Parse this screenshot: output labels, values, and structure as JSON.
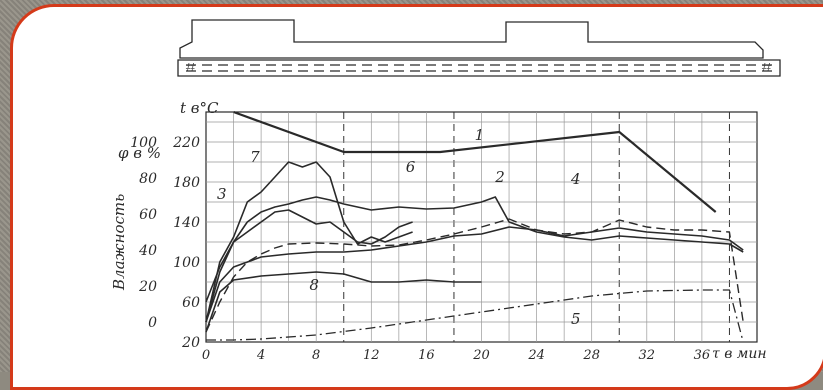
{
  "chart_data": {
    "type": "line",
    "title": "",
    "xlabel": "τ в мин",
    "ylabel_left_outer": "Влажность",
    "ylabel_phi": "φ в %",
    "ylabel_temp": "t в°C",
    "x_ticks": [
      "0",
      "4",
      "8",
      "12",
      "16",
      "20",
      "24",
      "28",
      "32",
      "36"
    ],
    "phi_ticks": [
      "0",
      "20",
      "40",
      "60",
      "80",
      "100"
    ],
    "temp_ticks": [
      "20",
      "60",
      "100",
      "140",
      "180",
      "220"
    ],
    "xlim": [
      0,
      40
    ],
    "tlim": [
      20,
      250
    ],
    "grid": true,
    "series": [
      {
        "name": "1",
        "style": "solid-bold",
        "x": [
          2,
          10,
          17,
          30,
          37
        ],
        "y": [
          250,
          210,
          210,
          230,
          150
        ]
      },
      {
        "name": "2",
        "style": "solid",
        "x": [
          0,
          1,
          2,
          3,
          4,
          5,
          6,
          7,
          8,
          9,
          10,
          12,
          14,
          16,
          18,
          20,
          21,
          22,
          24,
          26,
          28,
          30,
          32,
          34,
          36,
          38,
          39
        ],
        "y": [
          60,
          95,
          120,
          140,
          150,
          155,
          158,
          162,
          165,
          162,
          158,
          152,
          155,
          153,
          154,
          160,
          165,
          140,
          130,
          125,
          122,
          126,
          124,
          122,
          120,
          118,
          110
        ]
      },
      {
        "name": "3",
        "style": "dashed",
        "x": [
          0,
          1,
          2,
          3,
          4,
          5,
          6,
          8,
          10,
          12,
          14,
          16,
          18,
          20,
          22,
          24,
          26,
          28,
          30,
          32,
          34,
          36,
          38,
          39
        ],
        "y": [
          30,
          60,
          85,
          100,
          108,
          114,
          118,
          119,
          118,
          116,
          117,
          122,
          128,
          135,
          143,
          132,
          128,
          130,
          142,
          135,
          132,
          132,
          130,
          40
        ]
      },
      {
        "name": "4",
        "style": "solid",
        "x": [
          0,
          1,
          2,
          4,
          6,
          8,
          10,
          12,
          14,
          16,
          18,
          20,
          22,
          24,
          26,
          28,
          30,
          32,
          34,
          36,
          38,
          39
        ],
        "y": [
          40,
          80,
          95,
          105,
          108,
          110,
          110,
          112,
          116,
          120,
          126,
          128,
          135,
          132,
          126,
          130,
          134,
          130,
          128,
          126,
          122,
          112
        ]
      },
      {
        "name": "5",
        "style": "dash-dot",
        "x": [
          0,
          2,
          4,
          8,
          12,
          16,
          20,
          24,
          28,
          32,
          36,
          38,
          39
        ],
        "y": [
          22,
          22,
          23,
          27,
          34,
          42,
          50,
          58,
          66,
          71,
          72,
          72,
          20
        ]
      },
      {
        "name": "6",
        "style": "solid",
        "x": [
          0,
          1,
          2,
          3,
          4,
          5,
          6,
          7,
          8,
          9,
          10,
          11,
          12,
          13,
          14,
          15
        ],
        "y": [
          40,
          90,
          120,
          130,
          140,
          150,
          152,
          145,
          138,
          140,
          130,
          120,
          118,
          125,
          135,
          140
        ]
      },
      {
        "name": "7",
        "style": "solid",
        "x": [
          0,
          1,
          2,
          3,
          4,
          5,
          6,
          7,
          8,
          9,
          10,
          11,
          12,
          13,
          14,
          15
        ],
        "y": [
          40,
          100,
          125,
          160,
          170,
          185,
          200,
          195,
          200,
          185,
          140,
          118,
          125,
          120,
          125,
          130
        ]
      },
      {
        "name": "8",
        "style": "solid",
        "x": [
          0,
          1,
          2,
          4,
          6,
          8,
          10,
          12,
          14,
          16,
          18,
          20
        ],
        "y": [
          30,
          70,
          82,
          86,
          88,
          90,
          88,
          80,
          80,
          82,
          80,
          80
        ]
      }
    ],
    "curve_labels": [
      {
        "text": "1",
        "x": 19.5,
        "y": 222
      },
      {
        "text": "2",
        "x": 21,
        "y": 180
      },
      {
        "text": "3",
        "x": 0.8,
        "y": 163
      },
      {
        "text": "4",
        "x": 26.5,
        "y": 178
      },
      {
        "text": "5",
        "x": 26.5,
        "y": 38
      },
      {
        "text": "6",
        "x": 14.5,
        "y": 190
      },
      {
        "text": "7",
        "x": 3.2,
        "y": 200
      },
      {
        "text": "8",
        "x": 7.5,
        "y": 72
      }
    ]
  }
}
